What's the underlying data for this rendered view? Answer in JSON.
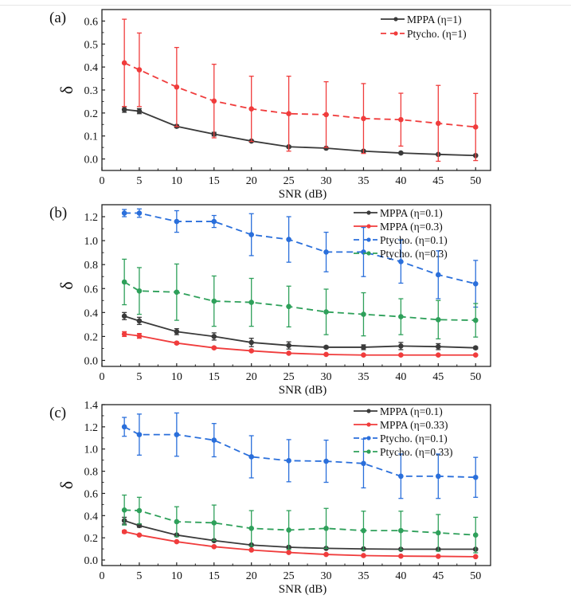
{
  "chart_data": [
    {
      "type": "line",
      "panel_label": "(a)",
      "title": "",
      "xlabel": "SNR (dB)",
      "ylabel": "δ",
      "xlim": [
        0,
        52
      ],
      "ylim": [
        -0.05,
        0.65
      ],
      "xticks": [
        0,
        5,
        10,
        15,
        20,
        25,
        30,
        35,
        40,
        45,
        50
      ],
      "yticks": [
        0.0,
        0.1,
        0.2,
        0.3,
        0.4,
        0.5,
        0.6
      ],
      "ytick_format": 1,
      "grid": false,
      "legend_position": "top-right",
      "x": [
        3,
        5,
        10,
        15,
        20,
        25,
        30,
        35,
        40,
        45,
        50
      ],
      "series": [
        {
          "name": "MPPA (η=1)",
          "color": "#3a3a3a",
          "dashed": false,
          "values": [
            0.215,
            0.208,
            0.142,
            0.108,
            0.078,
            0.053,
            0.047,
            0.034,
            0.026,
            0.02,
            0.015
          ],
          "errors": [
            0.012,
            0.011,
            0.006,
            0.008,
            0.004,
            0.004,
            0.003,
            0.003,
            0.003,
            0.002,
            0.002
          ]
        },
        {
          "name": "Ptycho. (η=1)",
          "color": "#f03c3c",
          "dashed": true,
          "values": [
            0.418,
            0.388,
            0.313,
            0.252,
            0.218,
            0.197,
            0.193,
            0.176,
            0.171,
            0.155,
            0.139
          ],
          "errors": [
            0.19,
            0.16,
            0.172,
            0.16,
            0.142,
            0.163,
            0.143,
            0.152,
            0.115,
            0.165,
            0.146
          ]
        }
      ]
    },
    {
      "type": "line",
      "panel_label": "(b)",
      "title": "",
      "xlabel": "SNR (dB)",
      "ylabel": "δ",
      "xlim": [
        0,
        52
      ],
      "ylim": [
        -0.05,
        1.3
      ],
      "xticks": [
        0,
        5,
        10,
        15,
        20,
        25,
        30,
        35,
        40,
        45,
        50
      ],
      "yticks": [
        0.0,
        0.2,
        0.4,
        0.6,
        0.8,
        1.0,
        1.2
      ],
      "ytick_format": 1,
      "grid": false,
      "legend_position": "top-right",
      "x": [
        3,
        5,
        10,
        15,
        20,
        25,
        30,
        35,
        40,
        45,
        50
      ],
      "series": [
        {
          "name": "MPPA (η=0.1)",
          "color": "#3a3a3a",
          "dashed": false,
          "values": [
            0.37,
            0.33,
            0.24,
            0.2,
            0.15,
            0.125,
            0.11,
            0.11,
            0.12,
            0.115,
            0.105
          ],
          "errors": [
            0.03,
            0.03,
            0.025,
            0.03,
            0.035,
            0.03,
            0.01,
            0.02,
            0.03,
            0.025,
            0.01
          ]
        },
        {
          "name": "MPPA (η=0.3)",
          "color": "#f03c3c",
          "dashed": false,
          "values": [
            0.22,
            0.205,
            0.145,
            0.105,
            0.08,
            0.06,
            0.05,
            0.045,
            0.045,
            0.045,
            0.045
          ],
          "errors": [
            0.02,
            0.02,
            0.01,
            0.008,
            0.006,
            0.005,
            0.005,
            0.005,
            0.005,
            0.005,
            0.005
          ]
        },
        {
          "name": "Ptycho. (η=0.1)",
          "color": "#2a6fdb",
          "dashed": true,
          "values": [
            1.23,
            1.23,
            1.16,
            1.16,
            1.05,
            1.01,
            0.905,
            0.905,
            0.825,
            0.715,
            0.64
          ],
          "errors": [
            0.03,
            0.035,
            0.09,
            0.05,
            0.175,
            0.19,
            0.165,
            0.205,
            0.18,
            0.2,
            0.195
          ]
        },
        {
          "name": "Ptycho. (η=0.3)",
          "color": "#2ea05a",
          "dashed": true,
          "values": [
            0.655,
            0.58,
            0.57,
            0.495,
            0.485,
            0.45,
            0.405,
            0.385,
            0.365,
            0.34,
            0.335
          ],
          "errors": [
            0.19,
            0.195,
            0.235,
            0.21,
            0.2,
            0.17,
            0.19,
            0.18,
            0.15,
            0.16,
            0.14
          ]
        }
      ]
    },
    {
      "type": "line",
      "panel_label": "(c)",
      "title": "",
      "xlabel": "SNR (dB)",
      "ylabel": "δ",
      "xlim": [
        0,
        52
      ],
      "ylim": [
        -0.05,
        1.4
      ],
      "xticks": [
        0,
        5,
        10,
        15,
        20,
        25,
        30,
        35,
        40,
        45,
        50
      ],
      "yticks": [
        0.0,
        0.2,
        0.4,
        0.6,
        0.8,
        1.0,
        1.2,
        1.4
      ],
      "ytick_format": 1,
      "grid": false,
      "legend_position": "top-right",
      "x": [
        3,
        5,
        10,
        15,
        20,
        25,
        30,
        35,
        40,
        45,
        50
      ],
      "series": [
        {
          "name": "MPPA (η=0.1)",
          "color": "#3a3a3a",
          "dashed": false,
          "values": [
            0.355,
            0.31,
            0.225,
            0.175,
            0.135,
            0.115,
            0.105,
            0.1,
            0.097,
            0.097,
            0.097
          ],
          "errors": [
            0.03,
            0.015,
            0.01,
            0.008,
            0.008,
            0.008,
            0.006,
            0.006,
            0.005,
            0.005,
            0.005
          ]
        },
        {
          "name": "MPPA (η=0.33)",
          "color": "#f03c3c",
          "dashed": false,
          "values": [
            0.255,
            0.225,
            0.165,
            0.12,
            0.09,
            0.068,
            0.05,
            0.04,
            0.035,
            0.033,
            0.03
          ],
          "errors": [
            0.012,
            0.008,
            0.006,
            0.005,
            0.004,
            0.004,
            0.003,
            0.003,
            0.003,
            0.003,
            0.003
          ]
        },
        {
          "name": "Ptycho. (η=0.1)",
          "color": "#2a6fdb",
          "dashed": true,
          "values": [
            1.2,
            1.13,
            1.13,
            1.08,
            0.93,
            0.895,
            0.89,
            0.87,
            0.755,
            0.755,
            0.745
          ],
          "errors": [
            0.085,
            0.185,
            0.195,
            0.15,
            0.19,
            0.19,
            0.19,
            0.22,
            0.2,
            0.2,
            0.18
          ]
        },
        {
          "name": "Ptycho. (η=0.33)",
          "color": "#2ea05a",
          "dashed": true,
          "values": [
            0.45,
            0.445,
            0.345,
            0.335,
            0.285,
            0.27,
            0.285,
            0.265,
            0.265,
            0.245,
            0.225
          ],
          "errors": [
            0.135,
            0.12,
            0.135,
            0.16,
            0.16,
            0.175,
            0.18,
            0.175,
            0.175,
            0.165,
            0.16
          ]
        }
      ]
    }
  ]
}
